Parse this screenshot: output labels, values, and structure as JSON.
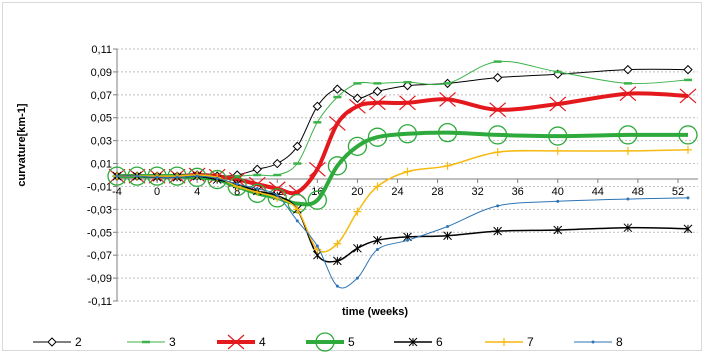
{
  "chart_data": {
    "type": "line",
    "title": "",
    "xlabel": "time (weeks)",
    "ylabel": "curvature[km-1]",
    "xlim": [
      -4,
      54
    ],
    "ylim": [
      -0.11,
      0.11
    ],
    "x_ticks": [
      -4,
      0,
      4,
      8,
      12,
      16,
      20,
      24,
      28,
      32,
      36,
      40,
      44,
      48,
      52
    ],
    "x_tick_labels": [
      "-4",
      "0",
      "4",
      "8",
      "12",
      "16",
      "20",
      "24",
      "28",
      "32",
      "36",
      "40",
      "44",
      "48",
      "52"
    ],
    "y_ticks": [
      0.11,
      0.09,
      0.07,
      0.05,
      0.03,
      0.01,
      -0.01,
      -0.03,
      -0.05,
      -0.07,
      -0.09,
      -0.11
    ],
    "y_tick_labels": [
      "0,11",
      "0,09",
      "0,07",
      "0,05",
      "0,03",
      "0,01",
      "-0,01",
      "-0,03",
      "-0,05",
      "-0,07",
      "-0,09",
      "-0,11"
    ],
    "grid": "horizontal dashed",
    "legend_position": "bottom",
    "series": [
      {
        "name": "2",
        "color": "#000000",
        "width": 1,
        "marker": "diamond",
        "x": [
          -4,
          -2,
          0,
          2,
          4,
          6,
          8,
          10,
          12,
          14,
          16,
          18,
          20,
          22,
          25,
          29,
          34,
          40,
          47,
          53
        ],
        "y": [
          -0.001,
          -0.001,
          -0.001,
          -0.001,
          0,
          -0.001,
          0,
          0.005,
          0.01,
          0.025,
          0.06,
          0.075,
          0.067,
          0.073,
          0.078,
          0.08,
          0.085,
          0.088,
          0.092,
          0.092
        ]
      },
      {
        "name": "3",
        "color": "#3cb34a",
        "width": 1,
        "marker": "dash",
        "x": [
          -4,
          -2,
          0,
          2,
          4,
          6,
          8,
          10,
          12,
          14,
          16,
          18,
          20,
          22,
          25,
          29,
          34,
          40,
          47,
          53
        ],
        "y": [
          -0.001,
          -0.001,
          -0.001,
          -0.001,
          0,
          -0.001,
          -0.001,
          0,
          0,
          0.01,
          0.046,
          0.068,
          0.08,
          0.08,
          0.081,
          0.08,
          0.099,
          0.09,
          0.08,
          0.083
        ]
      },
      {
        "name": "4",
        "color": "#e3191e",
        "width": 4,
        "marker": "x-cross",
        "x": [
          -4,
          -2,
          0,
          2,
          4,
          6,
          8,
          10,
          12,
          14,
          16,
          18,
          20,
          22,
          25,
          29,
          34,
          40,
          47,
          53
        ],
        "y": [
          -0.001,
          -0.001,
          -0.001,
          -0.001,
          0,
          -0.001,
          -0.004,
          -0.008,
          -0.012,
          -0.015,
          0.005,
          0.045,
          0.06,
          0.063,
          0.063,
          0.066,
          0.057,
          0.062,
          0.071,
          0.069
        ]
      },
      {
        "name": "5",
        "color": "#2eaa3c",
        "width": 4,
        "marker": "circle",
        "x": [
          -4,
          -2,
          0,
          2,
          4,
          6,
          8,
          10,
          12,
          14,
          16,
          18,
          20,
          22,
          25,
          29,
          34,
          40,
          47,
          53
        ],
        "y": [
          -0.001,
          -0.001,
          -0.001,
          -0.001,
          -0.002,
          -0.004,
          -0.01,
          -0.016,
          -0.02,
          -0.025,
          -0.022,
          0.008,
          0.025,
          0.033,
          0.036,
          0.037,
          0.035,
          0.034,
          0.035,
          0.035
        ]
      },
      {
        "name": "6",
        "color": "#000000",
        "width": 1.5,
        "marker": "asterisk",
        "x": [
          -4,
          -2,
          0,
          2,
          4,
          6,
          8,
          10,
          12,
          14,
          16,
          18,
          20,
          22,
          25,
          29,
          34,
          40,
          47,
          53
        ],
        "y": [
          -0.001,
          -0.001,
          -0.002,
          -0.002,
          -0.001,
          -0.004,
          -0.008,
          -0.014,
          -0.018,
          -0.03,
          -0.07,
          -0.075,
          -0.064,
          -0.057,
          -0.054,
          -0.053,
          -0.049,
          -0.048,
          -0.046,
          -0.047
        ]
      },
      {
        "name": "7",
        "color": "#f5b90f",
        "width": 1.5,
        "marker": "plus",
        "x": [
          -4,
          -2,
          0,
          2,
          4,
          6,
          8,
          10,
          12,
          14,
          16,
          18,
          20,
          22,
          25,
          29,
          34,
          40,
          47,
          53
        ],
        "y": [
          -0.001,
          -0.001,
          -0.001,
          -0.001,
          0,
          -0.002,
          -0.01,
          -0.015,
          -0.02,
          -0.03,
          -0.065,
          -0.06,
          -0.032,
          -0.01,
          0.003,
          0.008,
          0.02,
          0.021,
          0.021,
          0.022
        ]
      },
      {
        "name": "8",
        "color": "#2e75b6",
        "width": 1,
        "marker": "dot",
        "x": [
          -4,
          -2,
          0,
          2,
          4,
          6,
          8,
          10,
          12,
          14,
          16,
          18,
          20,
          22,
          25,
          29,
          34,
          40,
          47,
          53
        ],
        "y": [
          -0.001,
          -0.001,
          -0.002,
          -0.002,
          -0.001,
          -0.003,
          -0.008,
          -0.012,
          -0.018,
          -0.04,
          -0.062,
          -0.097,
          -0.09,
          -0.065,
          -0.057,
          -0.045,
          -0.027,
          -0.023,
          -0.021,
          -0.02
        ]
      }
    ]
  }
}
